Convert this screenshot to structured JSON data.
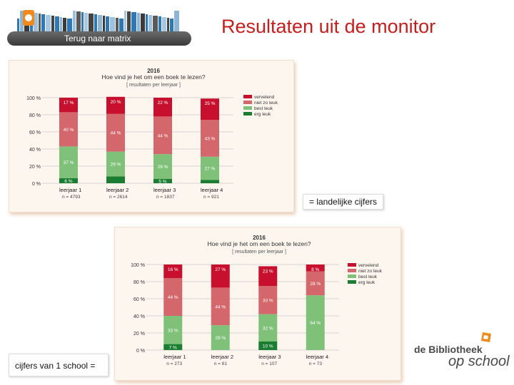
{
  "header": {
    "back_button": "Terug naar matrix",
    "title": "Resultaten uit de monitor"
  },
  "notes": {
    "national": "= landelijke cijfers",
    "school": "cijfers van 1 school ="
  },
  "logo": {
    "line1": "de Bibliotheek",
    "line2": "op school"
  },
  "colors": {
    "vervelend": "#c8102e",
    "niet_zo_leuk": "#d4676b",
    "best_leuk": "#80c17a",
    "erg_leuk": "#1b7d32",
    "title_red": "#c61d1d"
  },
  "chart_data": [
    {
      "type": "bar",
      "stacked": true,
      "title": "2016",
      "subtitle": "Hoe vind je het om een boek te lezen?",
      "caption": "[ resultaten per leerjaar ]",
      "categories": [
        "leerjaar 1",
        "leerjaar 2",
        "leerjaar 3",
        "leerjaar 4"
      ],
      "n_labels": [
        "n = 4793",
        "n = 2614",
        "n = 1837",
        "n = 921"
      ],
      "series": [
        {
          "name": "erg leuk",
          "values": [
            6,
            8,
            5,
            4
          ]
        },
        {
          "name": "best leuk",
          "values": [
            37,
            29,
            29,
            27
          ]
        },
        {
          "name": "niet zo leuk",
          "values": [
            40,
            44,
            44,
            43
          ]
        },
        {
          "name": "vervelend",
          "values": [
            17,
            20,
            22,
            25
          ]
        }
      ],
      "bar_labels": [
        [
          "6 %",
          "37 %",
          "40 %",
          "17 %"
        ],
        [
          "",
          "29 %",
          "44 %",
          "20 %"
        ],
        [
          "5 %",
          "29 %",
          "44 %",
          "22 %"
        ],
        [
          "",
          "27 %",
          "43 %",
          "25 %"
        ]
      ],
      "y_ticks": [
        "0 %",
        "20 %",
        "40 %",
        "60 %",
        "80 %",
        "100 %"
      ],
      "ylim": [
        0,
        100
      ],
      "legend": [
        "vervelend",
        "niet zo leuk",
        "best leuk",
        "erg leuk"
      ],
      "legend_position": "top-right"
    },
    {
      "type": "bar",
      "stacked": true,
      "title": "2016",
      "subtitle": "Hoe vind je het om een boek te lezen?",
      "caption": "[ resultaten per leerjaar ]",
      "categories": [
        "leerjaar 1",
        "leerjaar 2",
        "leerjaar 3",
        "leerjaar 4"
      ],
      "n_labels": [
        "n = 273",
        "n = 81",
        "n = 107",
        "n = 73"
      ],
      "series": [
        {
          "name": "erg leuk",
          "values": [
            7,
            0,
            10,
            0
          ]
        },
        {
          "name": "best leuk",
          "values": [
            33,
            29,
            32,
            64
          ]
        },
        {
          "name": "niet zo leuk",
          "values": [
            44,
            44,
            33,
            28
          ]
        },
        {
          "name": "vervelend",
          "values": [
            16,
            27,
            23,
            8
          ]
        }
      ],
      "bar_labels": [
        [
          "7 %",
          "33 %",
          "44 %",
          "16 %"
        ],
        [
          "",
          "29 %",
          "44 %",
          "27 %"
        ],
        [
          "10 %",
          "32 %",
          "33 %",
          "23 %"
        ],
        [
          "",
          "64 %",
          "28 %",
          "8 %"
        ]
      ],
      "y_ticks": [
        "0 %",
        "20 %",
        "40 %",
        "60 %",
        "80 %",
        "100 %"
      ],
      "ylim": [
        0,
        100
      ],
      "legend": [
        "vervelend",
        "niet zo leuk",
        "best leuk",
        "erg leuk"
      ],
      "legend_position": "top-right"
    }
  ]
}
